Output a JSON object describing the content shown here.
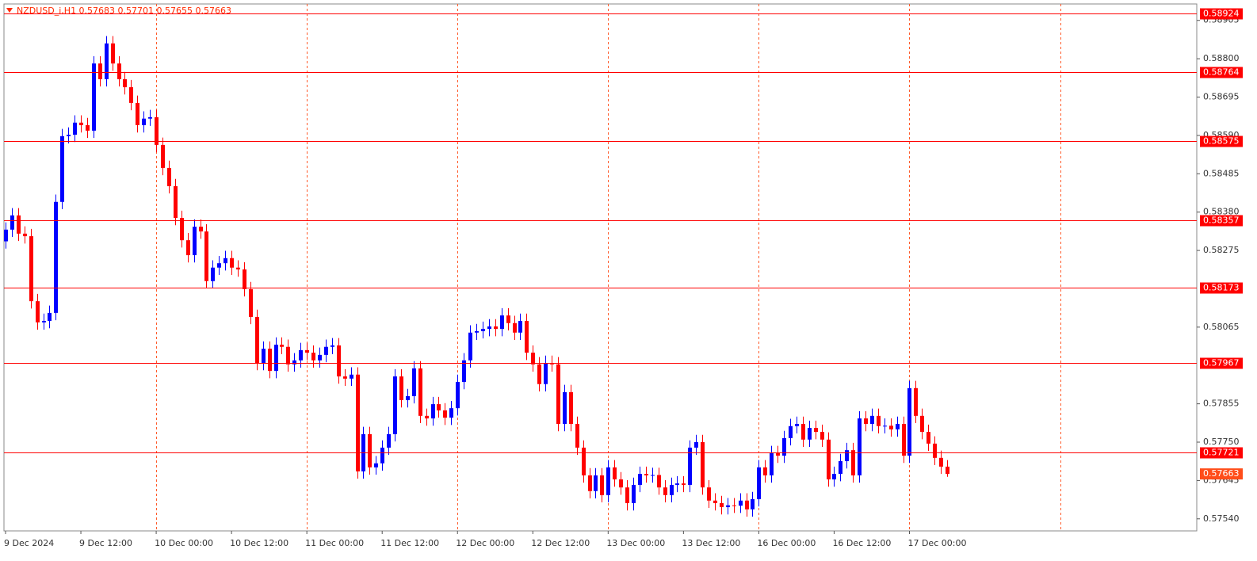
{
  "chart_data": {
    "type": "candlestick",
    "title": "NZDUSD_i,H1  0.57683 0.57701 0.57655 0.57663",
    "categories": [
      "9 Dec 2024",
      null,
      null,
      null,
      null,
      null,
      null,
      null,
      null,
      null,
      null,
      null,
      "9 Dec 12:00",
      null,
      null,
      null,
      null,
      null,
      null,
      null,
      null,
      null,
      null,
      null,
      "10 Dec 00:00",
      null,
      null,
      null,
      null,
      null,
      null,
      null,
      null,
      null,
      null,
      null,
      "10 Dec 12:00",
      null,
      null,
      null,
      null,
      null,
      null,
      null,
      null,
      null,
      null,
      null,
      "11 Dec 00:00",
      null,
      null,
      null,
      null,
      null,
      null,
      null,
      null,
      null,
      null,
      null,
      "11 Dec 12:00",
      null,
      null,
      null,
      null,
      null,
      null,
      null,
      null,
      null,
      null,
      null,
      "12 Dec 00:00",
      null,
      null,
      null,
      null,
      null,
      null,
      null,
      null,
      null,
      null,
      null,
      "12 Dec 12:00",
      null,
      null,
      null,
      null,
      null,
      null,
      null,
      null,
      null,
      null,
      null,
      "13 Dec 00:00",
      null,
      null,
      null,
      null,
      null,
      null,
      null,
      null,
      null,
      null,
      null,
      "13 Dec 12:00",
      null,
      null,
      null,
      null,
      null,
      null,
      null,
      null,
      null,
      null,
      null,
      "16 Dec 00:00",
      null,
      null,
      null,
      null,
      null,
      null,
      null,
      null,
      null,
      null,
      null,
      "16 Dec 12:00",
      null,
      null,
      null,
      null,
      null,
      null,
      null,
      null,
      null,
      null,
      null,
      "17 Dec 00:00",
      null,
      null,
      null,
      null,
      null,
      null
    ],
    "open": [
      0.583,
      0.58332,
      0.58371,
      0.58321,
      0.58314,
      0.58136,
      0.58078,
      0.58082,
      0.58104,
      0.58408,
      0.58588,
      0.58592,
      0.58625,
      0.58618,
      0.58603,
      0.58787,
      0.58744,
      0.58842,
      0.58787,
      0.58744,
      0.58722,
      0.58679,
      0.58618,
      0.58636,
      0.5864,
      0.58564,
      0.58501,
      0.58451,
      0.58364,
      0.58303,
      0.58262,
      0.5834,
      0.58327,
      0.58191,
      0.58228,
      0.5824,
      0.58254,
      0.58228,
      0.58223,
      0.58169,
      0.58093,
      0.57967,
      0.58006,
      0.57945,
      0.58017,
      0.58011,
      0.57963,
      0.57974,
      0.58002,
      0.57995,
      0.57974,
      0.57989,
      0.58011,
      0.58015,
      0.5793,
      0.57924,
      0.57935,
      0.5767,
      0.57772,
      0.57681,
      0.57692,
      0.57735,
      0.57772,
      0.5793,
      0.57865,
      0.57876,
      0.57952,
      0.57822,
      0.57815,
      0.57854,
      0.57837,
      0.57817,
      0.57843,
      0.57915,
      0.57974,
      0.5805,
      0.58054,
      0.5806,
      0.58067,
      0.5806,
      0.58097,
      0.58076,
      0.5805,
      0.58082,
      0.57995,
      0.57963,
      0.57909,
      0.57967,
      0.57963,
      0.578,
      0.57887,
      0.578,
      0.57735,
      0.57659,
      0.57616,
      0.57659,
      0.57605,
      0.57681,
      0.57648,
      0.57626,
      0.57583,
      0.57633,
      0.57663,
      0.57659,
      0.5766,
      0.57626,
      0.57605,
      0.57633,
      0.57637,
      0.57633,
      0.57735,
      0.5775,
      0.57626,
      0.5759,
      0.57583,
      0.57572,
      0.57577,
      0.57576,
      0.5759,
      0.57566,
      0.57594,
      0.57681,
      0.57659,
      0.5772,
      0.57713,
      0.57761,
      0.57794,
      0.578,
      0.57757,
      0.57789,
      0.57778,
      0.57757,
      0.57648,
      0.57663,
      0.57698,
      0.57728,
      0.57659,
      0.57815,
      0.578,
      0.57822,
      0.57794,
      0.57795,
      0.57785,
      0.578,
      0.57713,
      0.57898,
      0.57822,
      0.57778,
      0.57746,
      0.57707,
      0.57683
    ],
    "high": [
      0.58352,
      0.58391,
      0.58391,
      0.58341,
      0.58334,
      0.58156,
      0.58102,
      0.58124,
      0.58428,
      0.58608,
      0.58612,
      0.58645,
      0.58645,
      0.58638,
      0.58807,
      0.58807,
      0.58862,
      0.58862,
      0.58807,
      0.58764,
      0.58742,
      0.58699,
      0.58656,
      0.5866,
      0.5866,
      0.58584,
      0.58521,
      0.58471,
      0.58384,
      0.58323,
      0.5836,
      0.5836,
      0.58347,
      0.58248,
      0.5826,
      0.58274,
      0.58274,
      0.58248,
      0.58243,
      0.58189,
      0.58113,
      0.58026,
      0.58026,
      0.58037,
      0.58037,
      0.58031,
      0.57994,
      0.58022,
      0.58022,
      0.58015,
      0.58009,
      0.58031,
      0.58035,
      0.58035,
      0.5795,
      0.57955,
      0.57955,
      0.57792,
      0.57792,
      0.57712,
      0.57755,
      0.57792,
      0.5795,
      0.5795,
      0.57896,
      0.57972,
      0.57972,
      0.57842,
      0.57874,
      0.57874,
      0.57857,
      0.57863,
      0.57935,
      0.57994,
      0.5807,
      0.58074,
      0.5808,
      0.58087,
      0.58087,
      0.58117,
      0.58117,
      0.58096,
      0.58102,
      0.58102,
      0.58015,
      0.57983,
      0.57987,
      0.57987,
      0.57983,
      0.57907,
      0.57907,
      0.5782,
      0.57755,
      0.57679,
      0.57679,
      0.57679,
      0.57701,
      0.57701,
      0.57668,
      0.57646,
      0.57653,
      0.57683,
      0.57683,
      0.5768,
      0.5768,
      0.57646,
      0.57653,
      0.57657,
      0.57657,
      0.57755,
      0.5777,
      0.5777,
      0.57646,
      0.5761,
      0.57603,
      0.57597,
      0.57597,
      0.5761,
      0.5761,
      0.57614,
      0.57701,
      0.57701,
      0.5774,
      0.5774,
      0.57781,
      0.57814,
      0.5782,
      0.5782,
      0.57809,
      0.57809,
      0.57798,
      0.57777,
      0.57683,
      0.57718,
      0.57748,
      0.57748,
      0.57835,
      0.57835,
      0.57842,
      0.57842,
      0.57815,
      0.57815,
      0.5782,
      0.5782,
      0.57918,
      0.57918,
      0.57842,
      0.57798,
      0.57766,
      0.57727,
      0.57701
    ],
    "low": [
      0.5828,
      0.58312,
      0.58301,
      0.58294,
      0.58116,
      0.58058,
      0.58058,
      0.58062,
      0.58084,
      0.58388,
      0.58568,
      0.58572,
      0.58598,
      0.58583,
      0.58583,
      0.58724,
      0.58724,
      0.58767,
      0.58724,
      0.58702,
      0.58659,
      0.58598,
      0.58598,
      0.58616,
      0.58544,
      0.58481,
      0.58431,
      0.58344,
      0.58283,
      0.58242,
      0.58242,
      0.58307,
      0.58171,
      0.58171,
      0.58208,
      0.5822,
      0.58208,
      0.58203,
      0.58149,
      0.58073,
      0.57947,
      0.57947,
      0.57925,
      0.57925,
      0.57991,
      0.57943,
      0.57943,
      0.57954,
      0.57975,
      0.57954,
      0.57954,
      0.57969,
      0.57991,
      0.5791,
      0.57904,
      0.57904,
      0.5765,
      0.5765,
      0.57661,
      0.57661,
      0.57672,
      0.57715,
      0.57752,
      0.57845,
      0.57845,
      0.57856,
      0.57802,
      0.57795,
      0.57795,
      0.57817,
      0.57797,
      0.57797,
      0.57823,
      0.57895,
      0.57954,
      0.5803,
      0.58034,
      0.5804,
      0.5804,
      0.5804,
      0.58056,
      0.5803,
      0.5803,
      0.57975,
      0.57943,
      0.57889,
      0.57889,
      0.57943,
      0.5778,
      0.5778,
      0.5778,
      0.57715,
      0.57639,
      0.57596,
      0.57596,
      0.57585,
      0.57585,
      0.57628,
      0.57606,
      0.57563,
      0.57563,
      0.57613,
      0.57639,
      0.57639,
      0.57606,
      0.57585,
      0.57585,
      0.57613,
      0.57613,
      0.57613,
      0.57715,
      0.57606,
      0.5757,
      0.57563,
      0.57552,
      0.57552,
      0.57556,
      0.57556,
      0.57546,
      0.57546,
      0.57574,
      0.57639,
      0.57639,
      0.57693,
      0.57693,
      0.57741,
      0.57774,
      0.57737,
      0.57737,
      0.57758,
      0.57737,
      0.57628,
      0.57628,
      0.57643,
      0.57678,
      0.57639,
      0.57639,
      0.5778,
      0.5778,
      0.57774,
      0.57774,
      0.57765,
      0.57765,
      0.57693,
      0.57693,
      0.57802,
      0.57758,
      0.57726,
      0.57687,
      0.57663,
      0.57655
    ],
    "close": [
      0.58332,
      0.58371,
      0.58321,
      0.58314,
      0.58136,
      0.58078,
      0.58082,
      0.58104,
      0.58408,
      0.58588,
      0.58592,
      0.58625,
      0.58618,
      0.58603,
      0.58787,
      0.58744,
      0.58842,
      0.58787,
      0.58744,
      0.58722,
      0.58679,
      0.58618,
      0.58636,
      0.5864,
      0.58564,
      0.58501,
      0.58451,
      0.58364,
      0.58303,
      0.58262,
      0.5834,
      0.58327,
      0.58191,
      0.58228,
      0.5824,
      0.58254,
      0.58228,
      0.58223,
      0.58169,
      0.58093,
      0.57967,
      0.58006,
      0.57945,
      0.58017,
      0.58011,
      0.57963,
      0.57974,
      0.58002,
      0.57995,
      0.57974,
      0.57989,
      0.58011,
      0.58015,
      0.5793,
      0.57924,
      0.57935,
      0.5767,
      0.57772,
      0.57681,
      0.57692,
      0.57735,
      0.57772,
      0.5793,
      0.57865,
      0.57876,
      0.57952,
      0.57822,
      0.57815,
      0.57854,
      0.57837,
      0.57817,
      0.57843,
      0.57915,
      0.57974,
      0.5805,
      0.58054,
      0.5806,
      0.58067,
      0.5806,
      0.58097,
      0.58076,
      0.5805,
      0.58082,
      0.57995,
      0.57963,
      0.57909,
      0.57967,
      0.57963,
      0.578,
      0.57887,
      0.578,
      0.57735,
      0.57659,
      0.57616,
      0.57659,
      0.57605,
      0.57681,
      0.57648,
      0.57626,
      0.57583,
      0.57633,
      0.57663,
      0.57659,
      0.5766,
      0.57626,
      0.57605,
      0.57633,
      0.57637,
      0.57633,
      0.57735,
      0.5775,
      0.57626,
      0.5759,
      0.57583,
      0.57572,
      0.57577,
      0.57576,
      0.5759,
      0.57566,
      0.57594,
      0.57681,
      0.57659,
      0.5772,
      0.57713,
      0.57761,
      0.57794,
      0.578,
      0.57757,
      0.57789,
      0.57778,
      0.57757,
      0.57648,
      0.57663,
      0.57698,
      0.57728,
      0.57659,
      0.57815,
      0.578,
      0.57822,
      0.57794,
      0.57795,
      0.57785,
      0.578,
      0.57713,
      0.57898,
      0.57822,
      0.57778,
      0.57746,
      0.57707,
      0.57683,
      0.57663
    ],
    "up_color": "#0000ff",
    "down_color": "#ff0000",
    "levels": [
      0.58924,
      0.58764,
      0.58575,
      0.58357,
      0.58173,
      0.57967,
      0.57721
    ],
    "level_color": "#ff0000",
    "current_color": "#ff4d1a",
    "grid_color": "#ff5a2a",
    "ylim": [
      0.57507,
      0.5895
    ],
    "yticks": [
      0.58905,
      {
        "value": 0.588,
        "label": "0.58800"
      },
      0.58695,
      {
        "value": 0.5859,
        "label": "0.58590"
      },
      0.58485,
      {
        "value": 0.5838,
        "label": "0.58380"
      },
      0.58275,
      0.58065,
      0.57855,
      {
        "value": 0.5775,
        "label": "0.57750"
      },
      0.57645,
      {
        "value": 0.5754,
        "label": "0.57540"
      }
    ],
    "grid": true
  }
}
